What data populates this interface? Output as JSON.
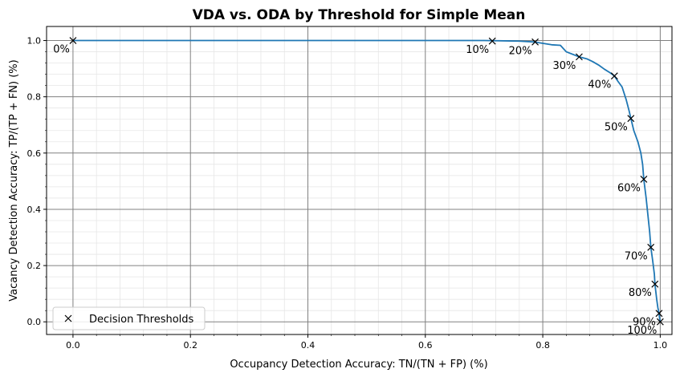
{
  "chart_data": {
    "type": "line",
    "title": "VDA vs. ODA by Threshold for Simple Mean",
    "xlabel": "Occupancy Detection Accuracy: TN/(TN + FP) (%)",
    "ylabel": "Vacancy Detection Accuracy: TP/(TP + FN) (%)",
    "xlim": [
      -0.045,
      1.02
    ],
    "ylim": [
      -0.045,
      1.05
    ],
    "grid": true,
    "minor_grid": true,
    "x_ticks": [
      "0.0",
      "0.2",
      "0.4",
      "0.6",
      "0.8",
      "1.0"
    ],
    "y_ticks": [
      "0.0",
      "0.2",
      "0.4",
      "0.6",
      "0.8",
      "1.0"
    ],
    "legend": {
      "placement": "lower-left",
      "label": "Decision Thresholds"
    },
    "series": [
      {
        "color": "#1f77b4",
        "points": [
          [
            0.0,
            1.0
          ],
          [
            0.7,
            1.0
          ],
          [
            0.76,
            0.998
          ],
          [
            0.785,
            0.995
          ],
          [
            0.8,
            0.99
          ],
          [
            0.815,
            0.985
          ],
          [
            0.83,
            0.983
          ],
          [
            0.84,
            0.96
          ],
          [
            0.862,
            0.942
          ],
          [
            0.875,
            0.935
          ],
          [
            0.885,
            0.925
          ],
          [
            0.895,
            0.913
          ],
          [
            0.905,
            0.898
          ],
          [
            0.915,
            0.885
          ],
          [
            0.922,
            0.874
          ],
          [
            0.928,
            0.855
          ],
          [
            0.935,
            0.835
          ],
          [
            0.942,
            0.79
          ],
          [
            0.947,
            0.75
          ],
          [
            0.95,
            0.723
          ],
          [
            0.955,
            0.68
          ],
          [
            0.962,
            0.64
          ],
          [
            0.967,
            0.6
          ],
          [
            0.97,
            0.56
          ],
          [
            0.972,
            0.507
          ],
          [
            0.976,
            0.44
          ],
          [
            0.979,
            0.38
          ],
          [
            0.982,
            0.32
          ],
          [
            0.984,
            0.265
          ],
          [
            0.987,
            0.22
          ],
          [
            0.99,
            0.17
          ],
          [
            0.991,
            0.134
          ],
          [
            0.994,
            0.08
          ],
          [
            0.996,
            0.05
          ],
          [
            0.998,
            0.03
          ],
          [
            0.999,
            0.012
          ],
          [
            1.0,
            0.0
          ]
        ]
      }
    ],
    "thresholds": [
      {
        "label": "0%",
        "x": 0.0,
        "y": 1.0
      },
      {
        "label": "10%",
        "x": 0.714,
        "y": 0.998
      },
      {
        "label": "20%",
        "x": 0.787,
        "y": 0.995
      },
      {
        "label": "30%",
        "x": 0.862,
        "y": 0.942
      },
      {
        "label": "40%",
        "x": 0.922,
        "y": 0.874
      },
      {
        "label": "50%",
        "x": 0.95,
        "y": 0.723
      },
      {
        "label": "60%",
        "x": 0.972,
        "y": 0.507
      },
      {
        "label": "70%",
        "x": 0.984,
        "y": 0.265
      },
      {
        "label": "80%",
        "x": 0.991,
        "y": 0.134
      },
      {
        "label": "90%",
        "x": 0.998,
        "y": 0.03
      },
      {
        "label": "100%",
        "x": 1.0,
        "y": 0.0
      }
    ],
    "marker_color": "#000000",
    "grid_color": "#808080"
  }
}
